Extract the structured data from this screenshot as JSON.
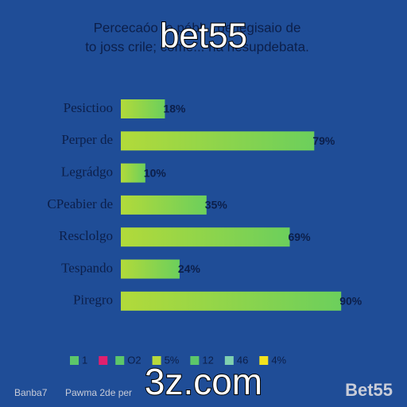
{
  "chart_data": {
    "type": "bar",
    "orientation": "horizontal",
    "title": [
      "Percecaóo to pébl... de jegisaio de",
      "to joss crile; come... na nesupdebata."
    ],
    "categories": [
      "Pesictioo",
      "Perper de",
      "Legrádgo",
      "CPeabier de",
      "Resclolgo",
      "Tespando",
      "Piregro"
    ],
    "values": [
      18,
      79,
      10,
      35,
      69,
      24,
      90
    ],
    "value_labels": [
      "18%",
      "79%",
      "10%",
      "35%",
      "69%",
      "24%",
      "90%"
    ],
    "xlim": [
      0,
      100
    ],
    "colors": [
      "#b2da3a",
      "#6ccf5c"
    ],
    "legend": [
      {
        "label": "1",
        "color": "#5cc76a"
      },
      {
        "label": null,
        "color": "#e0206e"
      },
      {
        "label": "O2",
        "color": "#5cc76a"
      },
      {
        "label": "5%",
        "color": "#b7d93c"
      },
      {
        "label": "12",
        "color": "#5cc76a"
      },
      {
        "label": "46",
        "color": "#7fd0b0"
      },
      {
        "label": "4%",
        "color": "#f2e21c"
      }
    ]
  },
  "overlay": {
    "watermark_top": "bet55",
    "watermark_bottom": "3z.com",
    "brand": "Bet55",
    "footer": [
      "Banba7",
      "Pawma 2de per"
    ]
  }
}
